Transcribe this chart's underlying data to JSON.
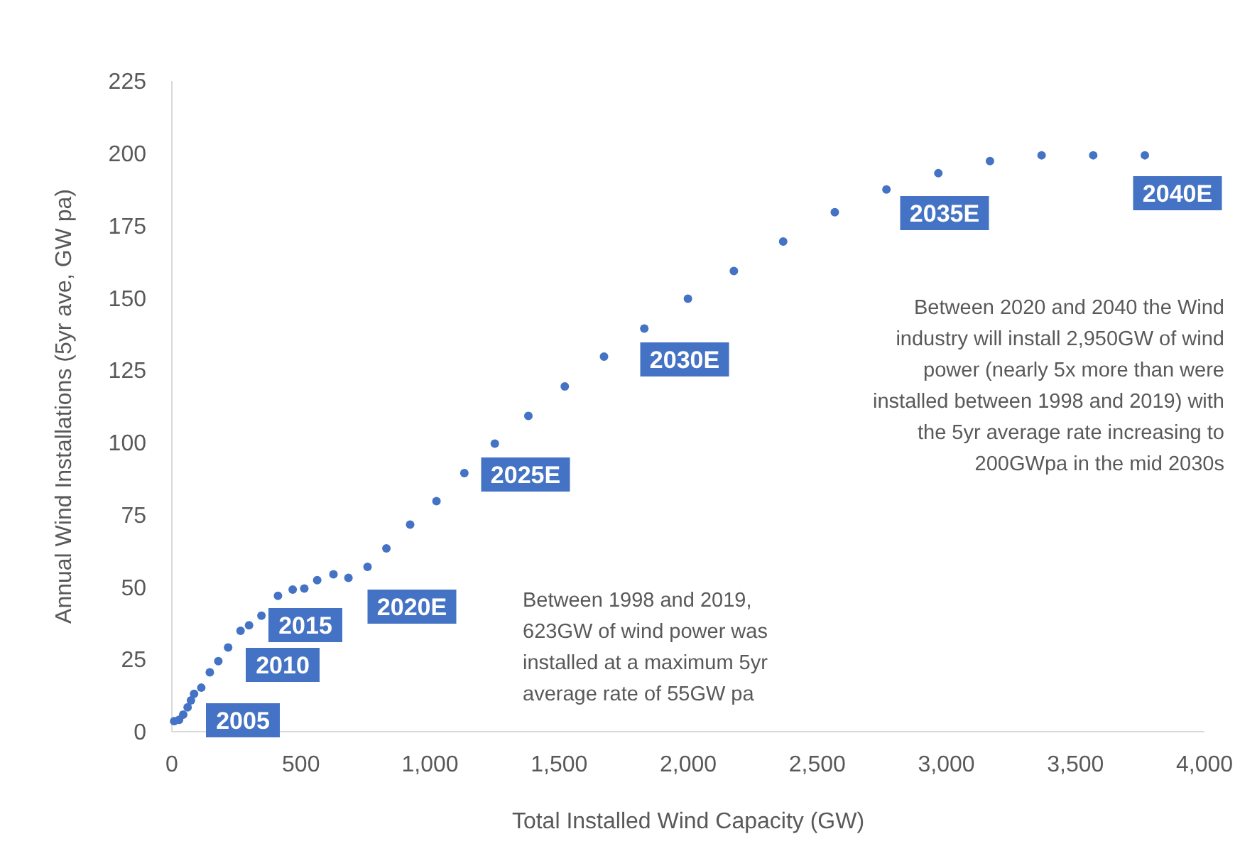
{
  "chart_data": {
    "type": "scatter",
    "xlabel": "Total Installed Wind Capacity (GW)",
    "ylabel": "Annual Wind Installations (5yr ave, GW pa)",
    "x": [
      9,
      28,
      44,
      61,
      74,
      86,
      114,
      147,
      180,
      218,
      266,
      299,
      347,
      411,
      468,
      513,
      563,
      626,
      684,
      758,
      831,
      923,
      1025,
      1133,
      1251,
      1381,
      1522,
      1674,
      1830,
      1999,
      2177,
      2368,
      2568,
      2768,
      2969,
      3169,
      3369,
      3569,
      3769
    ],
    "series": [
      {
        "color": "#4472c4",
        "values": [
          3.6,
          4.1,
          5.9,
          8.4,
          10.8,
          13.1,
          15.2,
          20.5,
          24.4,
          29.1,
          34.9,
          36.8,
          40.1,
          47,
          49.1,
          49.5,
          52.4,
          54.4,
          53.2,
          57,
          63.4,
          71.6,
          79.7,
          89.4,
          99.6,
          109.2,
          119.4,
          129.7,
          139.4,
          149.7,
          159.3,
          169.5,
          179.6,
          187.5,
          193.1,
          197.3,
          199.3,
          199.3,
          199.3
        ]
      }
    ],
    "marker": "circle",
    "grid": false,
    "xlim": [
      0,
      4000
    ],
    "xticks": [
      0,
      500,
      {
        "value": 1000,
        "label": "1,000"
      },
      {
        "value": 1500,
        "label": "1,500"
      },
      {
        "value": 2000,
        "label": "2,000"
      },
      {
        "value": 2500,
        "label": "2,500"
      },
      {
        "value": 3000,
        "label": "3,000"
      },
      {
        "value": 3500,
        "label": "3,500"
      },
      {
        "value": 4000,
        "label": "4,000"
      }
    ],
    "ylim": [
      0,
      225
    ],
    "yticks": [
      0,
      25,
      50,
      75,
      100,
      125,
      150,
      175,
      200,
      225
    ],
    "annotations": [
      "2005",
      "2010",
      "2015",
      "2020E",
      "2025E",
      "2030E",
      "2035E",
      "2040E",
      "Between 1998 and 2019,\n623GW of wind power was\ninstalled at a maximum 5yr\naverage rate of 55GW pa",
      "Between 2020 and 2040 the Wind\nindustry will install 2,950GW of wind\npower (nearly 5x more than were\ninstalled between 1998 and 2019) with\nthe 5yr average rate increasing to\n200GWpa in the mid 2030s"
    ]
  }
}
